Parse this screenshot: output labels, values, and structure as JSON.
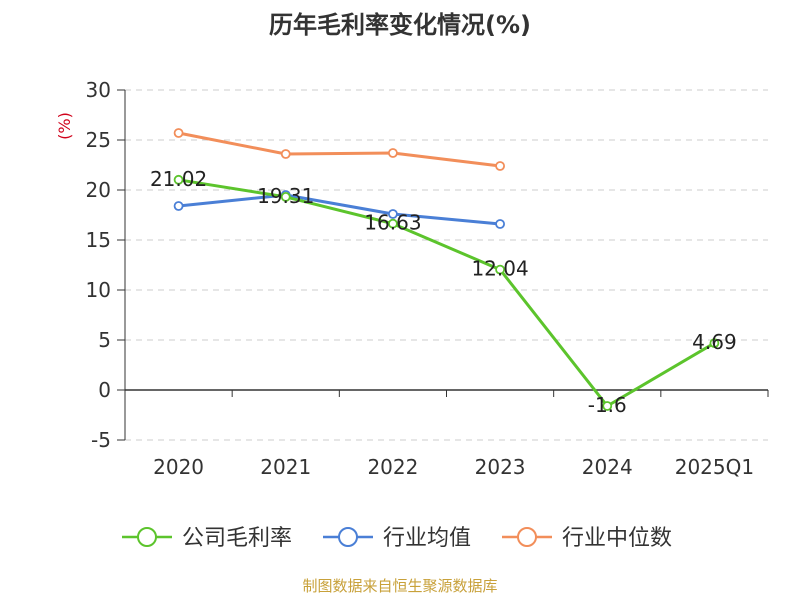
{
  "chart_data": {
    "type": "line",
    "title": "历年毛利率变化情况(%)",
    "ylabel": "(%)",
    "categories": [
      "2020",
      "2021",
      "2022",
      "2023",
      "2024",
      "2025Q1"
    ],
    "ylim": [
      -5,
      30
    ],
    "yticks": [
      "30",
      "25",
      "20",
      "15",
      "10",
      "5",
      "0",
      "-5"
    ],
    "grid": true,
    "legend_position": "bottom",
    "series": [
      {
        "name": "公司毛利率",
        "color": "#5cc42c",
        "values": [
          21.02,
          19.31,
          16.63,
          12.04,
          -1.6,
          4.69
        ],
        "labels": [
          "21.02",
          "19.31",
          "16.63",
          "12.04",
          "-1.6",
          "4.69"
        ]
      },
      {
        "name": "行业均值",
        "color": "#4a7fd6",
        "values": [
          18.4,
          19.5,
          17.6,
          16.6,
          null,
          null
        ]
      },
      {
        "name": "行业中位数",
        "color": "#f28e5a",
        "values": [
          25.7,
          23.6,
          23.7,
          22.4,
          null,
          null
        ]
      }
    ],
    "source": "制图数据来自恒生聚源数据库",
    "colors": {
      "axis": "#333333",
      "grid": "#cccccc",
      "ylabel": "#d0021b",
      "source": "#c8a13a"
    }
  }
}
